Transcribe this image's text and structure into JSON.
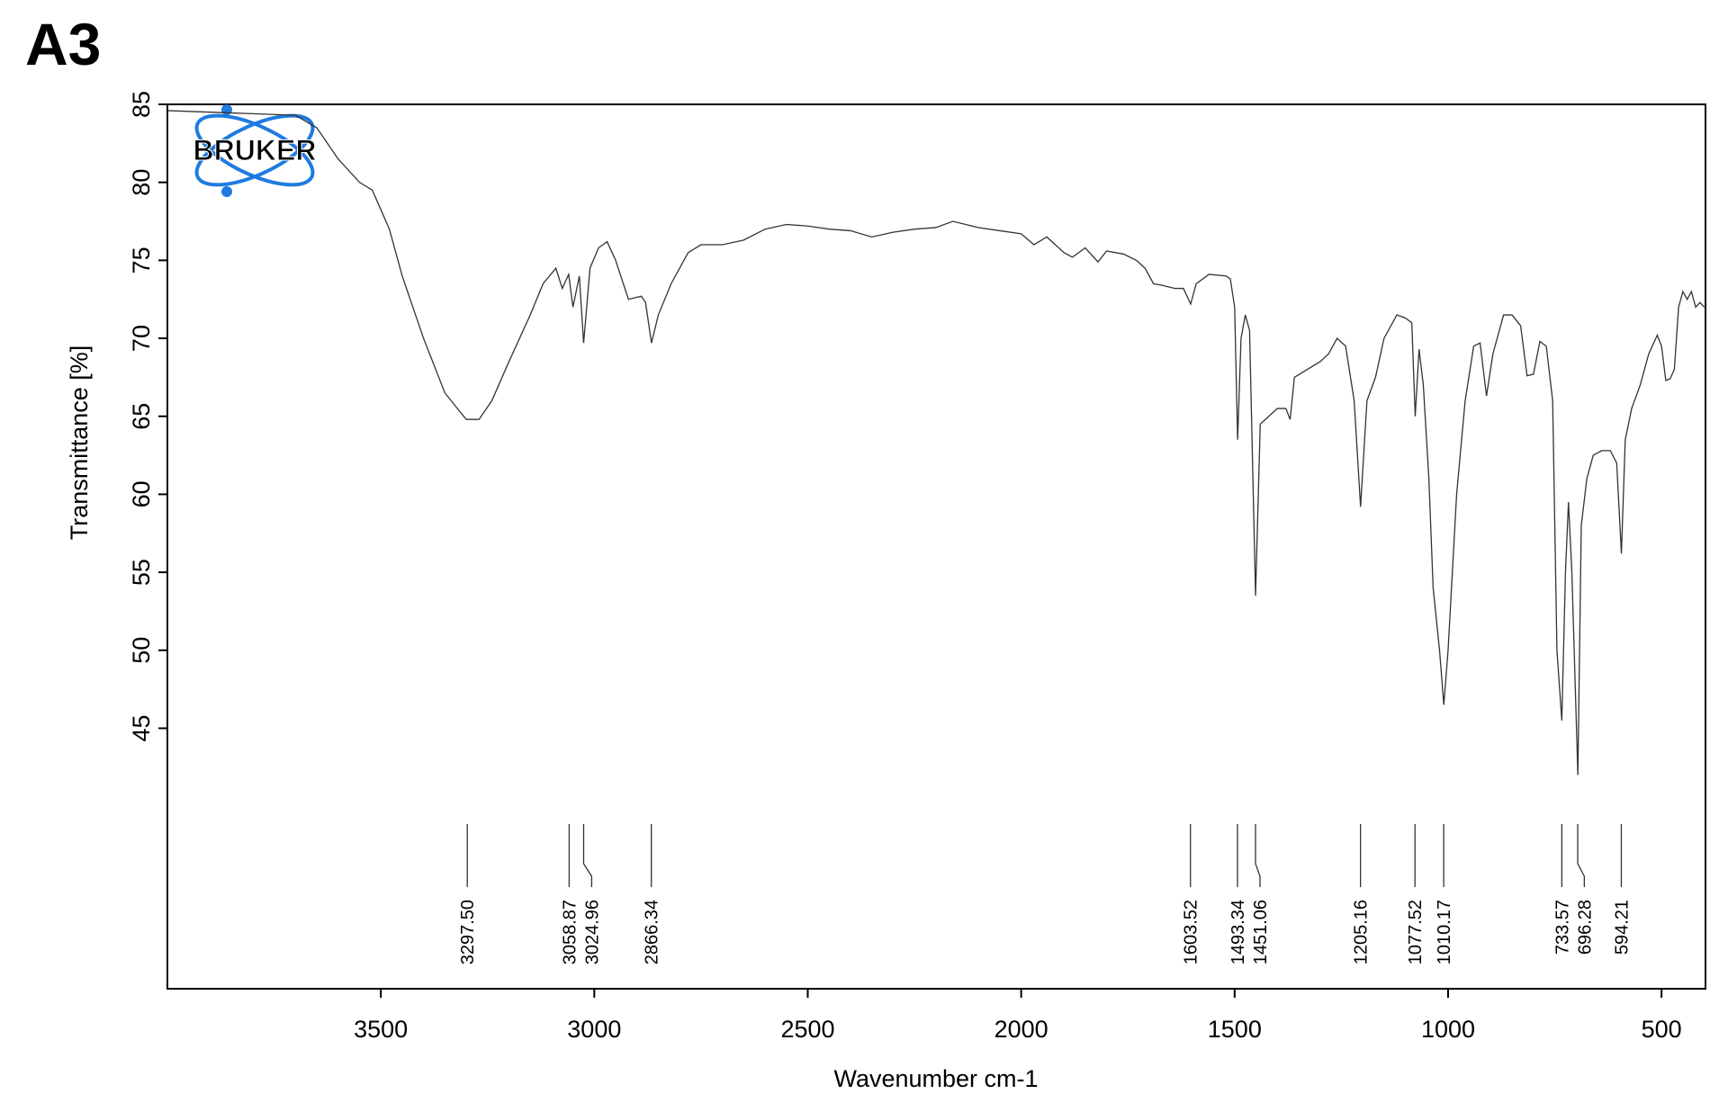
{
  "logo": "BRUKER",
  "chart_data": {
    "type": "line",
    "title": "A3",
    "x_label": "Wavenumber cm-1",
    "y_label": "Transmittance [%]",
    "color": "#333333",
    "xlim": [
      4000,
      397
    ],
    "ylim": [
      28.3,
      85
    ],
    "xticks": [
      3500,
      3000,
      2500,
      2000,
      1500,
      1000,
      500
    ],
    "yticks": [
      45,
      50,
      55,
      60,
      65,
      70,
      75,
      80,
      85
    ],
    "x": [
      4000,
      3900,
      3800,
      3700,
      3650,
      3600,
      3550,
      3520,
      3480,
      3450,
      3400,
      3350,
      3300,
      3270,
      3240,
      3200,
      3150,
      3120,
      3090,
      3075,
      3060,
      3050,
      3035,
      3025,
      3010,
      2990,
      2970,
      2950,
      2920,
      2890,
      2880,
      2866,
      2850,
      2820,
      2780,
      2750,
      2700,
      2650,
      2600,
      2550,
      2500,
      2450,
      2400,
      2350,
      2300,
      2250,
      2200,
      2160,
      2100,
      2050,
      2000,
      1970,
      1940,
      1900,
      1880,
      1850,
      1820,
      1800,
      1760,
      1730,
      1710,
      1690,
      1670,
      1640,
      1620,
      1603,
      1590,
      1560,
      1520,
      1510,
      1500,
      1493,
      1485,
      1475,
      1465,
      1451,
      1440,
      1420,
      1400,
      1380,
      1370,
      1360,
      1330,
      1300,
      1280,
      1260,
      1240,
      1220,
      1205,
      1190,
      1170,
      1150,
      1120,
      1100,
      1085,
      1077,
      1068,
      1058,
      1045,
      1035,
      1020,
      1010,
      1000,
      980,
      960,
      940,
      925,
      910,
      895,
      870,
      850,
      830,
      815,
      800,
      785,
      770,
      755,
      745,
      733.6,
      725,
      718,
      710,
      696,
      688,
      675,
      660,
      640,
      620,
      605,
      594,
      585,
      570,
      550,
      530,
      510,
      500,
      490,
      480,
      470,
      460,
      450,
      440,
      430,
      420,
      410,
      400
    ],
    "values": [
      84.6,
      84.5,
      84.4,
      84.3,
      83.5,
      81.5,
      80.0,
      79.5,
      77,
      74,
      70,
      66.5,
      64.8,
      64.8,
      66,
      68.5,
      71.5,
      73.5,
      74.5,
      73.2,
      74.1,
      72,
      74,
      69.7,
      74.5,
      75.8,
      76.2,
      75,
      72.5,
      72.7,
      72.3,
      69.7,
      71.5,
      73.5,
      75.5,
      76.0,
      76.0,
      76.3,
      77,
      77.3,
      77.2,
      77.0,
      76.9,
      76.5,
      76.8,
      77.0,
      77.1,
      77.5,
      77.1,
      76.9,
      76.7,
      76.0,
      76.5,
      75.5,
      75.2,
      75.8,
      74.9,
      75.6,
      75.4,
      75.0,
      74.5,
      73.5,
      73.4,
      73.2,
      73.2,
      72.2,
      73.5,
      74.1,
      74.0,
      73.8,
      72,
      63.5,
      70,
      71.5,
      70.5,
      53.5,
      64.5,
      65,
      65.5,
      65.5,
      64.8,
      67.5,
      68,
      68.5,
      69,
      70,
      69.5,
      66,
      59.2,
      66,
      67.5,
      70,
      71.5,
      71.3,
      71,
      65,
      69.3,
      67,
      61,
      54,
      50,
      46.5,
      50,
      60,
      66,
      69.5,
      69.7,
      66.3,
      69,
      71.5,
      71.5,
      70.8,
      67.6,
      67.7,
      69.8,
      69.5,
      66,
      50,
      45.5,
      55,
      59.5,
      55,
      42,
      58,
      61,
      62.5,
      62.8,
      62.8,
      62,
      56.2,
      63.5,
      65.5,
      67,
      69,
      70.2,
      69.5,
      67.3,
      67.4,
      68,
      72,
      73,
      72.5,
      73,
      72,
      72.3,
      72
    ],
    "peaks": [
      {
        "value": 3297.5,
        "label": "3297.50"
      },
      {
        "value": 3058.87,
        "label": "3058.87"
      },
      {
        "value": 3024.96,
        "label": "3024.96"
      },
      {
        "value": 2866.34,
        "label": "2866.34"
      },
      {
        "value": 1603.52,
        "label": "1603.52"
      },
      {
        "value": 1493.34,
        "label": "1493.34"
      },
      {
        "value": 1451.06,
        "label": "1451.06"
      },
      {
        "value": 1205.16,
        "label": "1205.16"
      },
      {
        "value": 1077.52,
        "label": "1077.52"
      },
      {
        "value": 1010.17,
        "label": "1010.17"
      },
      {
        "value": 733.57,
        "label": "733.57"
      },
      {
        "value": 696.28,
        "label": "696.28"
      },
      {
        "value": 594.21,
        "label": "594.21"
      }
    ]
  }
}
